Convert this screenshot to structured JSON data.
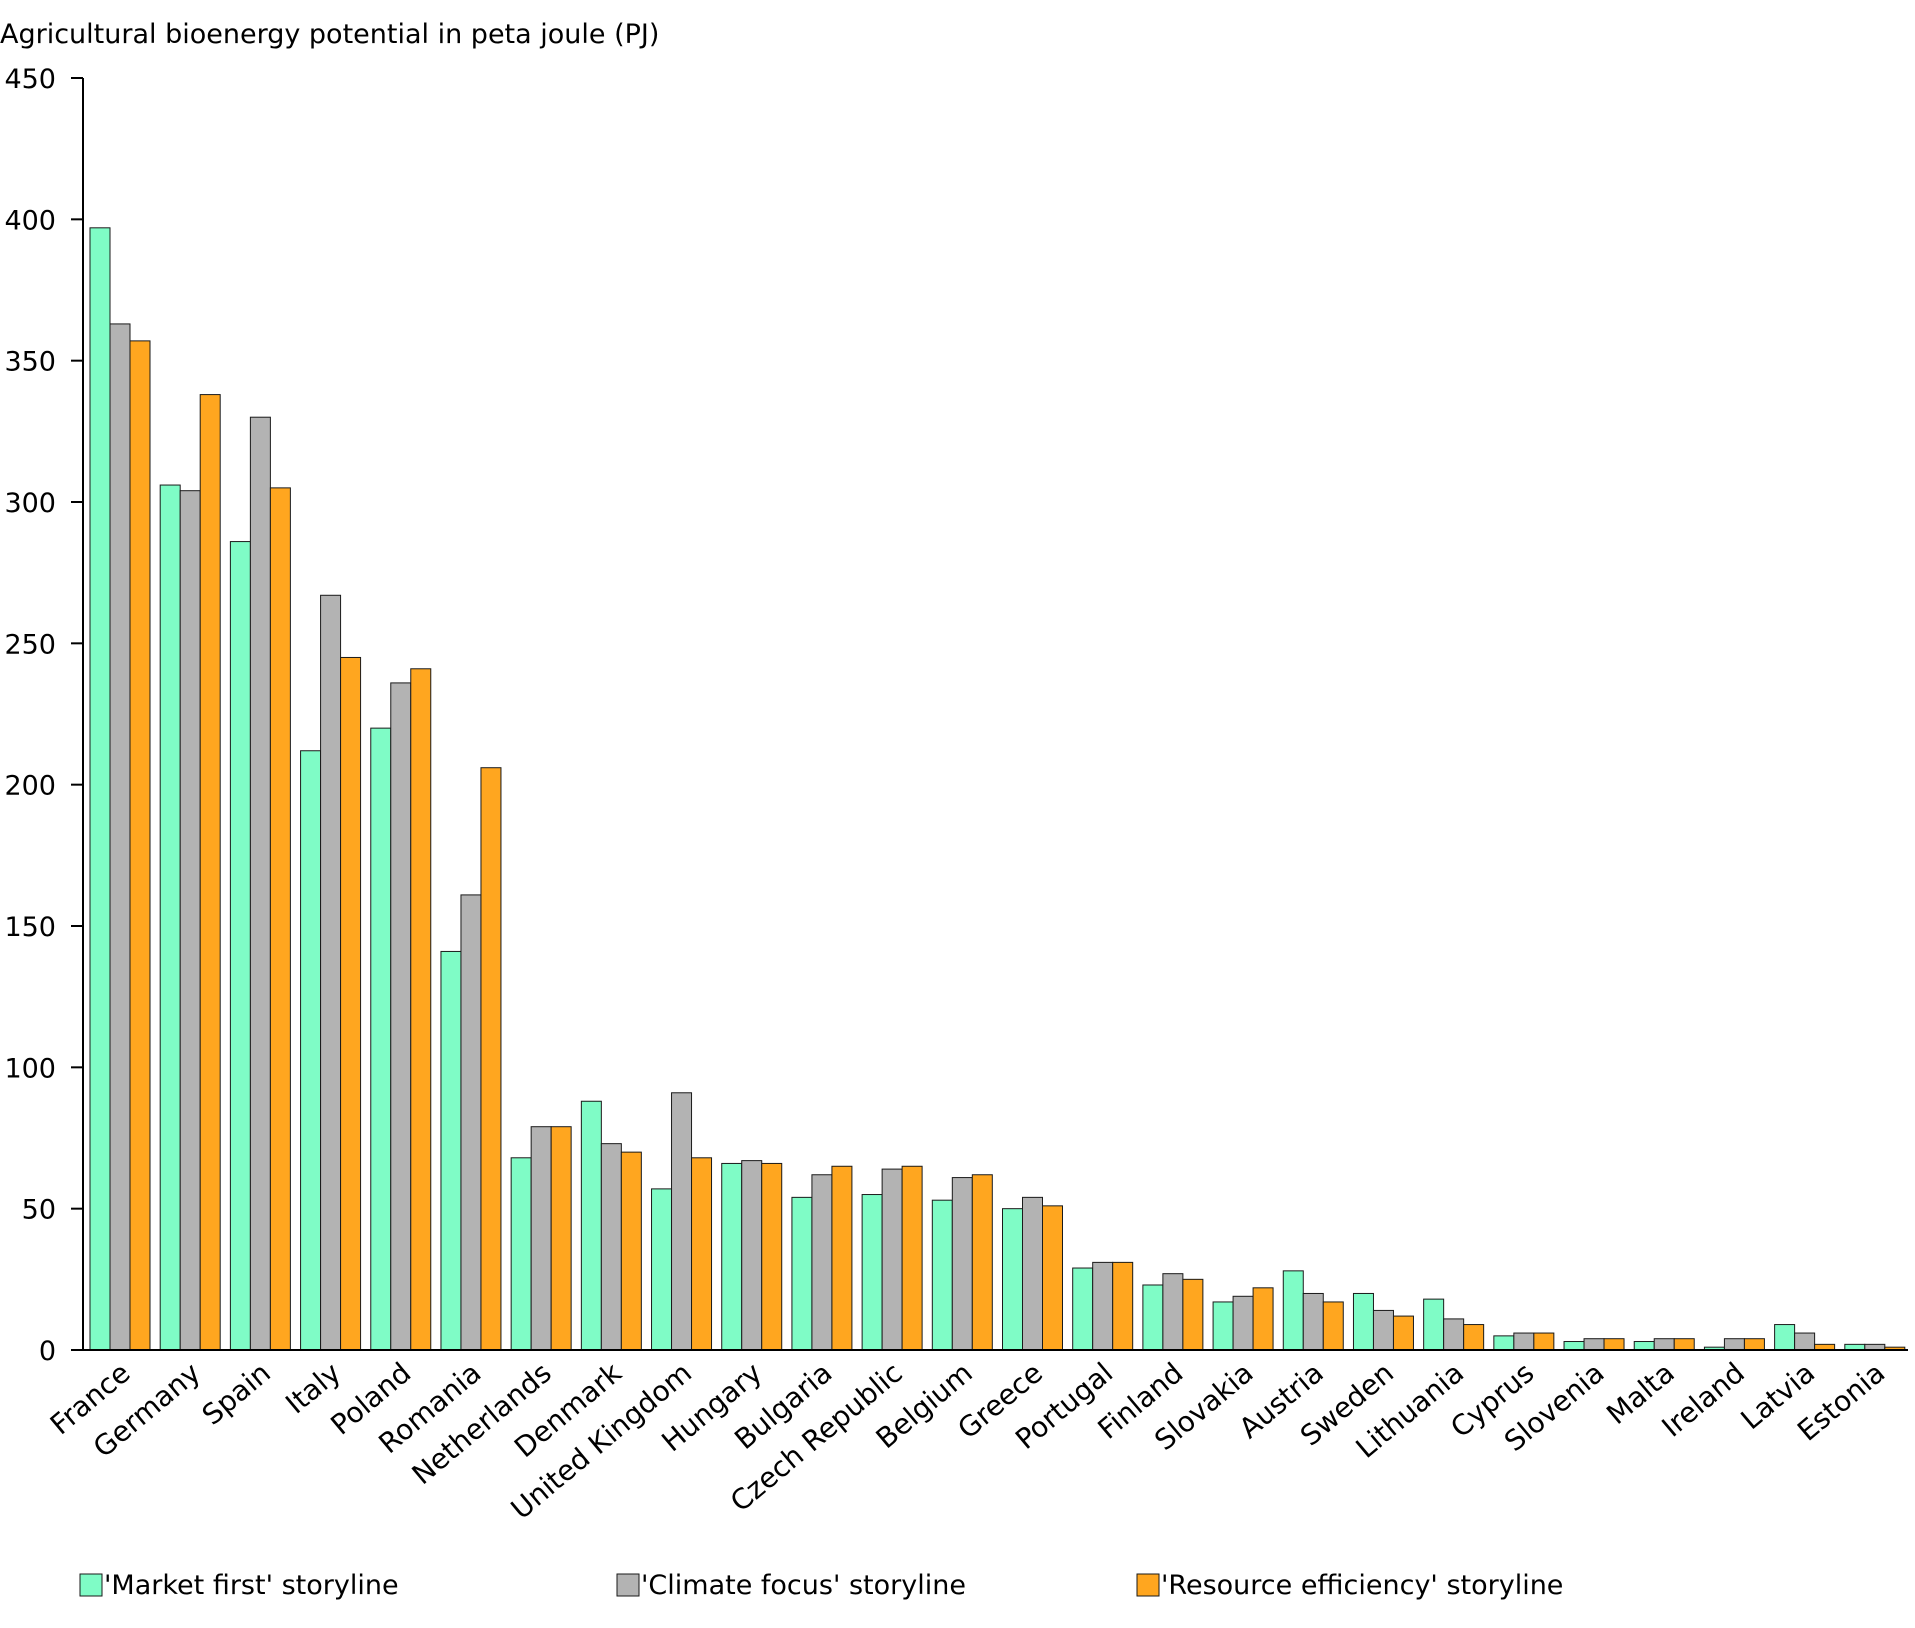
{
  "chart_data": {
    "type": "bar",
    "ylabel": "Agricultural bioenergy potential in peta joule (PJ)",
    "ylim": [
      0,
      450
    ],
    "yticks": [
      0,
      50,
      100,
      150,
      200,
      250,
      300,
      350,
      400,
      450
    ],
    "grid": false,
    "legend_position": "bottom",
    "categories": [
      "France",
      "Germany",
      "Spain",
      "Italy",
      "Poland",
      "Romania",
      "Netherlands",
      "Denmark",
      "United Kingdom",
      "Hungary",
      "Bulgaria",
      "Czech Republic",
      "Belgium",
      "Greece",
      "Portugal",
      "Finland",
      "Slovakia",
      "Austria",
      "Sweden",
      "Lithuania",
      "Cyprus",
      "Slovenia",
      "Malta",
      "Ireland",
      "Latvia",
      "Estonia"
    ],
    "series": [
      {
        "name": "'Market first' storyline",
        "color": "#7ffcc6",
        "values": [
          397,
          306,
          286,
          212,
          220,
          141,
          68,
          88,
          57,
          66,
          54,
          55,
          53,
          50,
          29,
          23,
          17,
          28,
          20,
          18,
          5,
          3,
          3,
          1,
          9,
          2
        ]
      },
      {
        "name": "'Climate focus' storyline",
        "color": "#b3b3b3",
        "values": [
          363,
          304,
          330,
          267,
          236,
          161,
          79,
          73,
          91,
          67,
          62,
          64,
          61,
          54,
          31,
          27,
          19,
          20,
          14,
          11,
          6,
          4,
          4,
          4,
          6,
          2
        ]
      },
      {
        "name": "'Resource efficiency' storyline",
        "color": "#ffa61f",
        "values": [
          357,
          338,
          305,
          245,
          241,
          206,
          79,
          70,
          68,
          66,
          65,
          65,
          62,
          51,
          31,
          25,
          22,
          17,
          12,
          9,
          6,
          4,
          4,
          4,
          2,
          1
        ]
      }
    ]
  }
}
